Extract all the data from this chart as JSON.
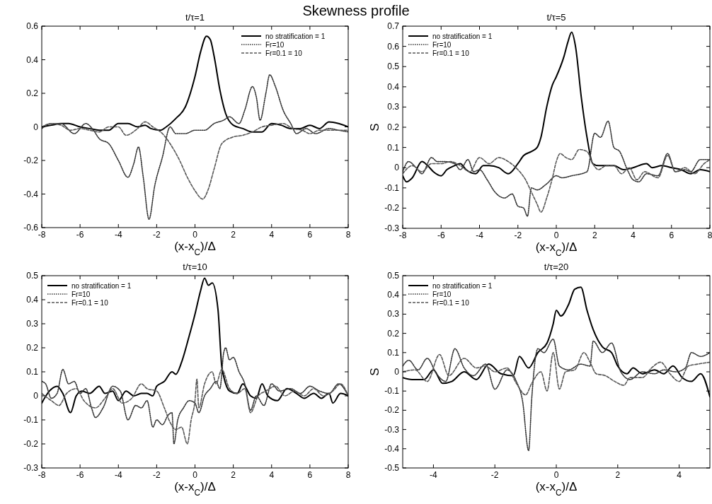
{
  "chart_data": [
    {
      "type": "line",
      "title": "t/τ=1",
      "xlabel": "(x-x$_{C}$)/Δ",
      "annotations": [
        "Skewness profile"
      ],
      "xlim": [
        -8,
        8
      ],
      "xticks": [
        -8,
        -6,
        -4,
        -2,
        0,
        2,
        4,
        6,
        8
      ],
      "ylim": [
        -0.6,
        0.6
      ],
      "yticks": [
        -0.6,
        -0.4,
        -0.2,
        0,
        0.2,
        0.4,
        0.6
      ],
      "legend": "top right",
      "series": [
        {
          "name": "no stratification = 1",
          "color": "#000000",
          "line_style": "solid",
          "x": [
            -8,
            -7.5,
            -7,
            -6.6,
            -6,
            -5.5,
            -5,
            -4.5,
            -4,
            -3.5,
            -3,
            -2.6,
            -2.3,
            -1.8,
            -1.5,
            -1,
            -0.5,
            0,
            0.3,
            0.6,
            0.8,
            1,
            1.3,
            1.6,
            2,
            2.5,
            3,
            3.5,
            4,
            4.5,
            5,
            5.5,
            6,
            6.5,
            7,
            7.5,
            8
          ],
          "values": [
            0,
            0.01,
            0.02,
            0.02,
            0,
            -0.01,
            -0.02,
            -0.02,
            0.02,
            0.02,
            0,
            0.01,
            -0.01,
            -0.02,
            0,
            0.05,
            0.12,
            0.3,
            0.45,
            0.54,
            0.52,
            0.42,
            0.22,
            0.08,
            0.01,
            -0.01,
            -0.03,
            -0.03,
            0.02,
            0.01,
            -0.01,
            -0.01,
            0.01,
            -0.01,
            0.03,
            0.02,
            0
          ]
        },
        {
          "name": "Fr=10",
          "color": "#333333",
          "line_style": "dotted",
          "x": [
            -8,
            -7.5,
            -7,
            -6.3,
            -5.7,
            -5.3,
            -5,
            -4.5,
            -4,
            -3.5,
            -3.2,
            -2.95,
            -2.7,
            -2.4,
            -2.1,
            -1.7,
            -1.3,
            -1,
            -0.5,
            0,
            0.5,
            1,
            1.5,
            1.8,
            2.3,
            2.6,
            3,
            3.2,
            3.4,
            3.7,
            3.9,
            4.2,
            4.6,
            5,
            5.3,
            5.8,
            6.3,
            7,
            7.5,
            8
          ],
          "values": [
            -0.01,
            0.02,
            0.02,
            -0.04,
            0.02,
            -0.02,
            -0.07,
            -0.1,
            -0.2,
            -0.3,
            -0.22,
            -0.12,
            -0.3,
            -0.55,
            -0.35,
            -0.18,
            0,
            -0.04,
            -0.04,
            -0.02,
            -0.02,
            0.02,
            0.04,
            0.06,
            0.02,
            0.1,
            0.24,
            0.18,
            0.04,
            0.2,
            0.31,
            0.24,
            0.1,
            0.02,
            -0.04,
            -0.01,
            -0.04,
            -0.01,
            -0.02,
            -0.03
          ]
        },
        {
          "name": "Fr=0.1 = 10",
          "color": "#555555",
          "line_style": "dashed",
          "x": [
            -8,
            -7.5,
            -7,
            -6.5,
            -6,
            -5.5,
            -5,
            -4.5,
            -4,
            -3.6,
            -3,
            -2.6,
            -2.2,
            -1.7,
            -1.3,
            -0.8,
            -0.4,
            0,
            0.4,
            0.7,
            1,
            1.4,
            2,
            2.5,
            3,
            3.5,
            4,
            4.6,
            5.1,
            5.6,
            6,
            6.5,
            7,
            7.5,
            8
          ],
          "values": [
            0,
            0.02,
            0.01,
            -0.02,
            -0.01,
            -0.02,
            -0.03,
            0,
            0,
            -0.05,
            -0.01,
            0.03,
            0,
            -0.04,
            -0.1,
            -0.2,
            -0.3,
            -0.38,
            -0.43,
            -0.37,
            -0.25,
            -0.1,
            -0.06,
            -0.05,
            -0.03,
            0,
            0.01,
            0.02,
            -0.01,
            -0.02,
            -0.04,
            -0.02,
            -0.02,
            -0.02,
            -0.02
          ]
        }
      ]
    },
    {
      "type": "line",
      "title": "t/τ=5",
      "xlabel": "(x-x$_{C}$)/Δ",
      "ylabel": "S",
      "xlim": [
        -8,
        8
      ],
      "xticks": [
        -8,
        -6,
        -4,
        -2,
        0,
        2,
        4,
        6,
        8
      ],
      "ylim": [
        -0.3,
        0.7
      ],
      "yticks": [
        -0.3,
        -0.2,
        -0.1,
        0,
        0.1,
        0.2,
        0.3,
        0.4,
        0.5,
        0.6,
        0.7
      ],
      "legend": "top left",
      "series": [
        {
          "name": "no stratification = 1",
          "color": "#000000",
          "line_style": "solid",
          "x": [
            -8,
            -7.8,
            -7.5,
            -7,
            -6.7,
            -6.4,
            -6,
            -5.7,
            -5.3,
            -5,
            -4.7,
            -4.2,
            -3.8,
            -3.5,
            -3,
            -2.5,
            -2,
            -1.7,
            -1.3,
            -1,
            -0.8,
            -0.5,
            -0.2,
            0,
            0.4,
            0.6,
            0.8,
            1,
            1.3,
            1.6,
            1.9,
            2.2,
            2.6,
            3,
            3.5,
            4,
            4.7,
            5,
            5.5,
            6,
            6.5,
            7,
            7.5,
            8
          ],
          "values": [
            -0.04,
            -0.07,
            -0.05,
            0.03,
            0.01,
            -0.02,
            -0.04,
            -0.01,
            0.01,
            0.02,
            -0.01,
            -0.03,
            0.01,
            0.01,
            0,
            -0.03,
            0.02,
            0.06,
            0.08,
            0.1,
            0.15,
            0.3,
            0.41,
            0.45,
            0.55,
            0.62,
            0.67,
            0.6,
            0.35,
            0.15,
            0.02,
            0.01,
            0.01,
            0.01,
            -0.01,
            0,
            0.02,
            0,
            0.01,
            0,
            -0.01,
            -0.03,
            -0.01,
            -0.02
          ]
        },
        {
          "name": "Fr=10",
          "color": "#333333",
          "line_style": "dotted",
          "x": [
            -8,
            -7.7,
            -7.3,
            -7,
            -6.5,
            -6.2,
            -5.8,
            -5.3,
            -5,
            -4.6,
            -4.3,
            -4,
            -3.6,
            -3.2,
            -2.7,
            -2.3,
            -2,
            -1.7,
            -1.5,
            -1.3,
            -1,
            -0.5,
            0,
            0.3,
            0.8,
            1.6,
            2,
            2.3,
            2.7,
            3,
            3.3,
            3.7,
            4,
            4.3,
            4.7,
            5.3,
            5.8,
            6.2,
            6.7,
            7,
            7.5,
            8
          ],
          "values": [
            -0.02,
            0.03,
            0,
            -0.03,
            0.05,
            0.03,
            0.03,
            0.02,
            -0.01,
            0.04,
            -0.02,
            -0.01,
            -0.06,
            -0.12,
            -0.15,
            -0.13,
            -0.19,
            -0.2,
            -0.24,
            -0.1,
            -0.11,
            -0.08,
            -0.04,
            -0.05,
            -0.04,
            -0.02,
            0.17,
            0.15,
            0.23,
            0.1,
            0.08,
            -0.01,
            -0.06,
            -0.07,
            -0.03,
            -0.04,
            0.07,
            -0.02,
            -0.01,
            -0.02,
            0.04,
            0.04
          ]
        },
        {
          "name": "Fr=0.1 = 10",
          "color": "#555555",
          "line_style": "dashed",
          "x": [
            -8,
            -7.5,
            -7,
            -6.5,
            -6,
            -5.5,
            -5,
            -4.5,
            -4,
            -3.5,
            -3,
            -2.5,
            -2,
            -1.6,
            -1.3,
            -1,
            -0.8,
            -0.5,
            -0.2,
            0,
            0.2,
            0.5,
            0.8,
            1.2,
            1.6,
            1.9,
            2.2,
            2.6,
            3,
            3.4,
            3.8,
            4.2,
            4.6,
            5.3,
            5.8,
            6.2,
            6.7,
            7.2,
            7.7,
            8
          ],
          "values": [
            -0.03,
            0.01,
            -0.02,
            0.02,
            0.02,
            0.03,
            0.01,
            -0.02,
            0.05,
            0.02,
            0.05,
            0.03,
            -0.01,
            -0.06,
            -0.12,
            -0.18,
            -0.22,
            -0.15,
            -0.05,
            0.03,
            0.07,
            0.05,
            0.04,
            0.09,
            0.08,
            0.02,
            -0.01,
            0.01,
            0.01,
            -0.03,
            0,
            -0.06,
            -0.02,
            -0.05,
            0.06,
            -0.02,
            0,
            -0.03,
            0.02,
            0.04
          ]
        }
      ]
    },
    {
      "type": "line",
      "title": "t/τ=10",
      "xlabel": "(x-x$_{C}$)/Δ",
      "xlim": [
        -8,
        8
      ],
      "xticks": [
        -8,
        -6,
        -4,
        -2,
        0,
        2,
        4,
        6,
        8
      ],
      "ylim": [
        -0.3,
        0.5
      ],
      "yticks": [
        -0.3,
        -0.2,
        -0.1,
        0,
        0.1,
        0.2,
        0.3,
        0.4,
        0.5
      ],
      "legend": "top left",
      "series": [
        {
          "name": "no stratification = 1",
          "color": "#000000",
          "line_style": "solid",
          "x": [
            -8,
            -7.6,
            -7.2,
            -6.9,
            -6.5,
            -6.2,
            -5.9,
            -5.5,
            -5,
            -4.7,
            -4.3,
            -4,
            -3.6,
            -3.2,
            -2.8,
            -2.5,
            -2.2,
            -2,
            -1.6,
            -1.2,
            -1,
            -0.7,
            -0.3,
            0,
            0.3,
            0.5,
            0.7,
            0.9,
            1.2,
            1.4,
            1.5,
            1.8,
            2.2,
            2.5,
            2.9,
            3.2,
            3.5,
            3.8,
            4.3,
            4.8,
            5.3,
            5.7,
            6.2,
            6.6,
            7,
            7.2,
            7.6,
            8
          ],
          "values": [
            -0.03,
            0.02,
            0.04,
            0.01,
            -0.07,
            0,
            0.02,
            0.01,
            0.04,
            0.01,
            0.02,
            -0.02,
            0.02,
            0,
            0.01,
            0.01,
            0,
            0.04,
            0.06,
            0.1,
            0.09,
            0.14,
            0.25,
            0.34,
            0.44,
            0.49,
            0.46,
            0.47,
            0.36,
            0.12,
            0.08,
            0.02,
            0.01,
            0.05,
            0,
            -0.01,
            0.05,
            0,
            -0.02,
            0.03,
            0.01,
            -0.01,
            0.01,
            -0.01,
            0.01,
            -0.03,
            0.01,
            0
          ]
        },
        {
          "name": "Fr=10",
          "color": "#333333",
          "line_style": "dotted",
          "x": [
            -8,
            -7.8,
            -7.5,
            -7.2,
            -6.9,
            -6.6,
            -6.3,
            -6,
            -5.7,
            -5.4,
            -5.2,
            -4.8,
            -4.3,
            -3.9,
            -3.5,
            -3.1,
            -2.8,
            -2.5,
            -2.2,
            -2,
            -1.7,
            -1.4,
            -1.2,
            -1.1,
            -0.9,
            -0.6,
            -0.3,
            0,
            0.2,
            0.5,
            0.8,
            1.1,
            1.3,
            1.5,
            1.6,
            1.8,
            2,
            2.3,
            2.6,
            2.9,
            3.2,
            3.6,
            4,
            4.4,
            5,
            5.5,
            6,
            6.5,
            7,
            7.5,
            8
          ],
          "values": [
            0.06,
            0.05,
            -0.01,
            0.01,
            0.11,
            0.05,
            0.06,
            0.01,
            0.03,
            -0.05,
            -0.09,
            -0.05,
            0.04,
            0.02,
            -0.1,
            -0.04,
            -0.05,
            -0.02,
            -0.13,
            -0.1,
            -0.12,
            -0.08,
            -0.07,
            -0.2,
            -0.1,
            -0.05,
            -0.02,
            -0.03,
            -0.07,
            0,
            0.03,
            0.06,
            0.03,
            0.18,
            0.2,
            0.15,
            0.16,
            0.1,
            0.05,
            -0.06,
            0,
            -0.04,
            0.05,
            0.02,
            0.03,
            0.01,
            0.04,
            0.02,
            0.01,
            0.05,
            0
          ]
        },
        {
          "name": "Fr=0.1 = 10",
          "color": "#555555",
          "line_style": "dashed",
          "x": [
            -8,
            -7.5,
            -7.1,
            -6.7,
            -6.2,
            -5.8,
            -5.2,
            -4.7,
            -4.3,
            -3.8,
            -3.3,
            -2.8,
            -2.5,
            -2,
            -1.6,
            -1.3,
            -1,
            -0.7,
            -0.4,
            -0.2,
            0,
            0.1,
            0.2,
            0.5,
            0.9,
            1.1,
            1.4,
            1.8,
            2.2,
            2.6,
            2.9,
            3.3,
            3.7,
            4.2,
            4.7,
            5.2,
            5.7,
            6.2,
            6.7,
            7.2,
            7.6,
            8
          ],
          "values": [
            0.01,
            -0.02,
            -0.04,
            0.01,
            0.03,
            -0.02,
            -0.05,
            -0.01,
            0.03,
            -0.03,
            -0.01,
            0.05,
            0.03,
            0.02,
            -0.05,
            -0.11,
            -0.14,
            -0.13,
            -0.2,
            -0.1,
            -0.02,
            0.07,
            -0.05,
            0.05,
            0.1,
            0.05,
            0.11,
            0.03,
            0.01,
            0.03,
            -0.07,
            0,
            0.02,
            0.04,
            0,
            0.02,
            0,
            0.03,
            0,
            0.02,
            0.05,
            0
          ]
        }
      ]
    },
    {
      "type": "line",
      "title": "t/τ=20",
      "xlabel": "(x-x$_{C}$)/Δ",
      "ylabel": "S",
      "xlim": [
        -5,
        5
      ],
      "xticks": [
        -4,
        -2,
        0,
        2,
        4
      ],
      "ylim": [
        -0.5,
        0.5
      ],
      "yticks": [
        -0.5,
        -0.4,
        -0.3,
        -0.2,
        -0.1,
        0,
        0.1,
        0.2,
        0.3,
        0.4,
        0.5
      ],
      "legend": "top left",
      "series": [
        {
          "name": "no stratification = 1",
          "color": "#000000",
          "line_style": "solid",
          "x": [
            -5,
            -4.7,
            -4.3,
            -4,
            -3.7,
            -3.4,
            -3,
            -2.6,
            -2.2,
            -1.8,
            -1.4,
            -1.2,
            -0.9,
            -0.6,
            -0.3,
            -0.1,
            0,
            0.15,
            0.4,
            0.6,
            0.8,
            1,
            1.2,
            1.5,
            1.8,
            2,
            2.3,
            2.5,
            2.8,
            3.2,
            3.5,
            3.8,
            4.1,
            4.4,
            4.7,
            5
          ],
          "values": [
            -0.03,
            -0.04,
            -0.04,
            0.01,
            -0.06,
            -0.05,
            0,
            -0.04,
            0.04,
            -0.01,
            -0.02,
            0.08,
            0.02,
            0.1,
            0.15,
            0.25,
            0.32,
            0.29,
            0.35,
            0.43,
            0.44,
            0.32,
            0.22,
            0.13,
            0.1,
            0.03,
            -0.01,
            0.02,
            -0.01,
            0.01,
            -0.01,
            0.03,
            -0.03,
            -0.05,
            -0.01,
            -0.13
          ]
        },
        {
          "name": "Fr=10",
          "color": "#333333",
          "line_style": "dotted",
          "x": [
            -5,
            -4.8,
            -4.5,
            -4.2,
            -3.9,
            -3.6,
            -3.3,
            -3,
            -2.7,
            -2.3,
            -2,
            -1.6,
            -1.3,
            -1.1,
            -0.9,
            -0.8,
            -0.6,
            -0.4,
            -0.1,
            0.1,
            0.4,
            0.8,
            1.1,
            1.2,
            1.5,
            1.8,
            2.1,
            2.4,
            2.8,
            3.2,
            3.5,
            3.9,
            4.2,
            4.4,
            4.7,
            5
          ],
          "values": [
            0.03,
            0.06,
            0.01,
            0.07,
            -0.01,
            -0.05,
            0.12,
            0.02,
            -0.02,
            0.04,
            -0.09,
            0.01,
            -0.05,
            -0.15,
            -0.41,
            -0.14,
            0.12,
            0.1,
            0.17,
            0.03,
            0.01,
            0.04,
            0.03,
            0.16,
            0.1,
            0.15,
            0,
            -0.04,
            0,
            -0.01,
            0.01,
            0,
            0.02,
            0.1,
            0.08,
            0.1
          ]
        },
        {
          "name": "Fr=0.1 = 10",
          "color": "#555555",
          "line_style": "dashed",
          "x": [
            -5,
            -4.6,
            -4.2,
            -3.8,
            -3.5,
            -3,
            -2.6,
            -2.3,
            -2,
            -1.6,
            -1.3,
            -1,
            -0.8,
            -0.5,
            -0.3,
            -0.1,
            0.1,
            0.3,
            0.6,
            0.9,
            1.1,
            1.3,
            1.6,
            1.9,
            2.2,
            2.4,
            2.8,
            3.1,
            3.4,
            3.7,
            4,
            4.3,
            4.6,
            5
          ],
          "values": [
            0,
            0.01,
            -0.05,
            0.09,
            -0.02,
            0.07,
            0.02,
            0.03,
            0,
            0.02,
            -0.06,
            -0.12,
            -0.06,
            0,
            -0.1,
            0.1,
            -0.09,
            0,
            0.01,
            0.1,
            0.05,
            -0.01,
            -0.02,
            -0.05,
            -0.07,
            -0.03,
            -0.03,
            0.02,
            0.05,
            -0.01,
            -0.05,
            0.03,
            0.04,
            0.05
          ]
        }
      ]
    }
  ]
}
